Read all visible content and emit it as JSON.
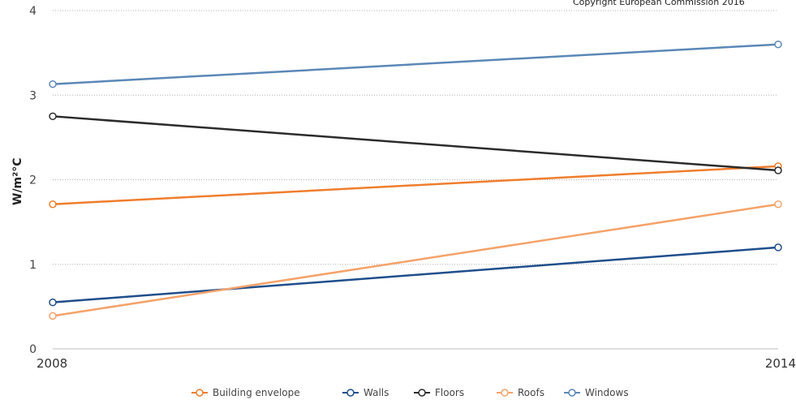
{
  "chart_data": {
    "type": "line",
    "title": "",
    "copyright": "Copyright European Commission 2016",
    "ylabel": "W/m²°C",
    "xlabel": "",
    "x": [
      "2008",
      "2014"
    ],
    "ylim": [
      0,
      4
    ],
    "yticks": [
      0,
      1,
      2,
      3,
      4
    ],
    "grid": true,
    "legend_position": "bottom",
    "series": [
      {
        "name": "Building envelope",
        "color": "#f07d2d",
        "values": [
          1.71,
          2.16
        ]
      },
      {
        "name": "Walls",
        "color": "#1f4e8c",
        "values": [
          0.55,
          1.2
        ]
      },
      {
        "name": "Floors",
        "color": "#2b2b2b",
        "values": [
          2.75,
          2.11
        ]
      },
      {
        "name": "Roofs",
        "color": "#f4a26a",
        "values": [
          0.39,
          1.71
        ]
      },
      {
        "name": "Windows",
        "color": "#5b87b8",
        "values": [
          3.13,
          3.6
        ]
      }
    ]
  }
}
